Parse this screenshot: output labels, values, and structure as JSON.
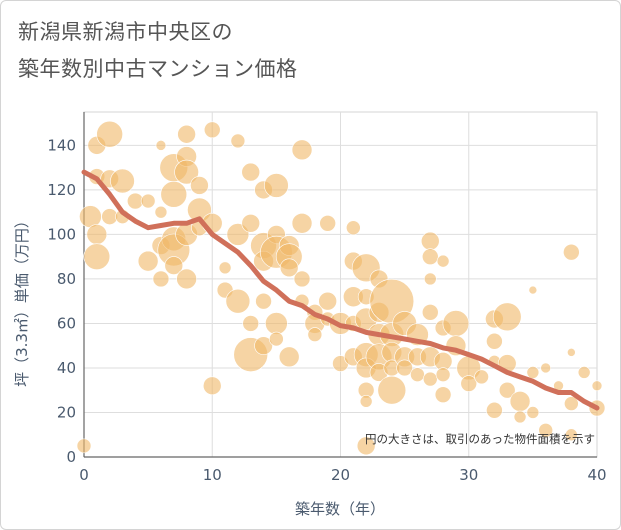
{
  "title_line1": "新潟県新潟市中央区の",
  "title_line2": "築年数別中古マンション価格",
  "chart_data": {
    "type": "scatter",
    "title": "新潟県新潟市中央区の築年数別中古マンション価格",
    "xlabel": "築年数（年）",
    "ylabel": "坪（3.3㎡）単価（万円）",
    "xlim": [
      0,
      40
    ],
    "ylim": [
      0,
      155
    ],
    "xticks": [
      0,
      10,
      20,
      30,
      40
    ],
    "yticks": [
      0,
      20,
      40,
      60,
      80,
      100,
      120,
      140
    ],
    "grid": true,
    "note": "円の大きさは、取引のあった物件面積を示す",
    "bubble_color": "#f0b868",
    "trend_color": "#d0705a",
    "points": [
      [
        0,
        5,
        7
      ],
      [
        0.5,
        108,
        11
      ],
      [
        1,
        140,
        9
      ],
      [
        1,
        126,
        8
      ],
      [
        1,
        100,
        10
      ],
      [
        1,
        90,
        13
      ],
      [
        2,
        145,
        13
      ],
      [
        2,
        125,
        9
      ],
      [
        2,
        108,
        8
      ],
      [
        3,
        124,
        12
      ],
      [
        3,
        108,
        7
      ],
      [
        4,
        115,
        8
      ],
      [
        5,
        115,
        7
      ],
      [
        5,
        88,
        10
      ],
      [
        6,
        140,
        5
      ],
      [
        6,
        95,
        9
      ],
      [
        6,
        80,
        8
      ],
      [
        6,
        110,
        6
      ],
      [
        7,
        130,
        14
      ],
      [
        7,
        118,
        13
      ],
      [
        7,
        98,
        12
      ],
      [
        7,
        93,
        16
      ],
      [
        7,
        86,
        9
      ],
      [
        8,
        145,
        9
      ],
      [
        8,
        135,
        10
      ],
      [
        8,
        128,
        12
      ],
      [
        8,
        100,
        11
      ],
      [
        8,
        80,
        10
      ],
      [
        9,
        122,
        9
      ],
      [
        9,
        111,
        12
      ],
      [
        9,
        103,
        8
      ],
      [
        10,
        147,
        8
      ],
      [
        10,
        105,
        10
      ],
      [
        10,
        32,
        9
      ],
      [
        11,
        85,
        6
      ],
      [
        11,
        75,
        8
      ],
      [
        12,
        142,
        7
      ],
      [
        12,
        100,
        11
      ],
      [
        12,
        70,
        12
      ],
      [
        13,
        128,
        9
      ],
      [
        13,
        105,
        9
      ],
      [
        13,
        60,
        8
      ],
      [
        13,
        46,
        17
      ],
      [
        14,
        120,
        9
      ],
      [
        14,
        95,
        13
      ],
      [
        14,
        88,
        10
      ],
      [
        14,
        70,
        8
      ],
      [
        14,
        50,
        9
      ],
      [
        15,
        122,
        12
      ],
      [
        15,
        100,
        9
      ],
      [
        15,
        92,
        16
      ],
      [
        15,
        60,
        11
      ],
      [
        15,
        53,
        7
      ],
      [
        16,
        95,
        10
      ],
      [
        16,
        90,
        13
      ],
      [
        16,
        85,
        9
      ],
      [
        16,
        45,
        10
      ],
      [
        17,
        138,
        10
      ],
      [
        17,
        105,
        10
      ],
      [
        17,
        80,
        8
      ],
      [
        17,
        70,
        7
      ],
      [
        18,
        65,
        8
      ],
      [
        18,
        60,
        10
      ],
      [
        18,
        55,
        7
      ],
      [
        19,
        105,
        8
      ],
      [
        19,
        70,
        9
      ],
      [
        19,
        62,
        7
      ],
      [
        20,
        60,
        11
      ],
      [
        20,
        42,
        8
      ],
      [
        21,
        103,
        7
      ],
      [
        21,
        88,
        9
      ],
      [
        21,
        72,
        10
      ],
      [
        21,
        60,
        8
      ],
      [
        21,
        45,
        9
      ],
      [
        22,
        85,
        14
      ],
      [
        22,
        72,
        8
      ],
      [
        22,
        62,
        11
      ],
      [
        22,
        46,
        12
      ],
      [
        22,
        40,
        10
      ],
      [
        22,
        30,
        8
      ],
      [
        22,
        25,
        6
      ],
      [
        22,
        5,
        9
      ],
      [
        23,
        80,
        9
      ],
      [
        23,
        65,
        10
      ],
      [
        23,
        55,
        11
      ],
      [
        23,
        45,
        13
      ],
      [
        23,
        38,
        9
      ],
      [
        24,
        70,
        22
      ],
      [
        24,
        55,
        12
      ],
      [
        24,
        47,
        10
      ],
      [
        24,
        40,
        8
      ],
      [
        24,
        30,
        14
      ],
      [
        25,
        60,
        12
      ],
      [
        25,
        45,
        10
      ],
      [
        25,
        40,
        8
      ],
      [
        26,
        55,
        11
      ],
      [
        26,
        45,
        9
      ],
      [
        26,
        37,
        7
      ],
      [
        27,
        97,
        9
      ],
      [
        27,
        90,
        8
      ],
      [
        27,
        80,
        6
      ],
      [
        27,
        65,
        8
      ],
      [
        27,
        45,
        10
      ],
      [
        27,
        35,
        7
      ],
      [
        28,
        88,
        6
      ],
      [
        28,
        58,
        8
      ],
      [
        28,
        43,
        9
      ],
      [
        28,
        37,
        7
      ],
      [
        28,
        28,
        8
      ],
      [
        29,
        60,
        13
      ],
      [
        29,
        50,
        10
      ],
      [
        30,
        40,
        12
      ],
      [
        30,
        33,
        8
      ],
      [
        31,
        36,
        7
      ],
      [
        32,
        62,
        9
      ],
      [
        32,
        52,
        8
      ],
      [
        32,
        43,
        6
      ],
      [
        32,
        21,
        8
      ],
      [
        33,
        63,
        14
      ],
      [
        33,
        42,
        9
      ],
      [
        33,
        30,
        8
      ],
      [
        34,
        25,
        10
      ],
      [
        34,
        18,
        6
      ],
      [
        35,
        75,
        4
      ],
      [
        35,
        38,
        6
      ],
      [
        35,
        20,
        6
      ],
      [
        36,
        40,
        5
      ],
      [
        36,
        12,
        7
      ],
      [
        37,
        32,
        5
      ],
      [
        38,
        92,
        8
      ],
      [
        38,
        47,
        4
      ],
      [
        38,
        24,
        7
      ],
      [
        38,
        10,
        6
      ],
      [
        39,
        38,
        6
      ],
      [
        40,
        32,
        5
      ],
      [
        40,
        22,
        8
      ]
    ],
    "trend": [
      [
        0,
        128
      ],
      [
        1,
        125
      ],
      [
        2,
        118
      ],
      [
        3,
        110
      ],
      [
        4,
        106
      ],
      [
        5,
        103
      ],
      [
        6,
        104
      ],
      [
        7,
        105
      ],
      [
        8,
        105
      ],
      [
        9,
        107
      ],
      [
        10,
        100
      ],
      [
        11,
        96
      ],
      [
        12,
        92
      ],
      [
        13,
        86
      ],
      [
        14,
        79
      ],
      [
        15,
        75
      ],
      [
        16,
        70
      ],
      [
        17,
        68
      ],
      [
        18,
        64
      ],
      [
        19,
        62
      ],
      [
        20,
        59
      ],
      [
        21,
        58
      ],
      [
        22,
        56
      ],
      [
        23,
        55
      ],
      [
        24,
        54
      ],
      [
        25,
        53
      ],
      [
        26,
        52
      ],
      [
        27,
        51
      ],
      [
        28,
        49
      ],
      [
        29,
        48
      ],
      [
        30,
        46
      ],
      [
        31,
        44
      ],
      [
        32,
        41
      ],
      [
        33,
        38
      ],
      [
        34,
        36
      ],
      [
        35,
        34
      ],
      [
        36,
        31
      ],
      [
        37,
        29
      ],
      [
        38,
        29
      ],
      [
        39,
        25
      ],
      [
        40,
        22
      ]
    ]
  }
}
